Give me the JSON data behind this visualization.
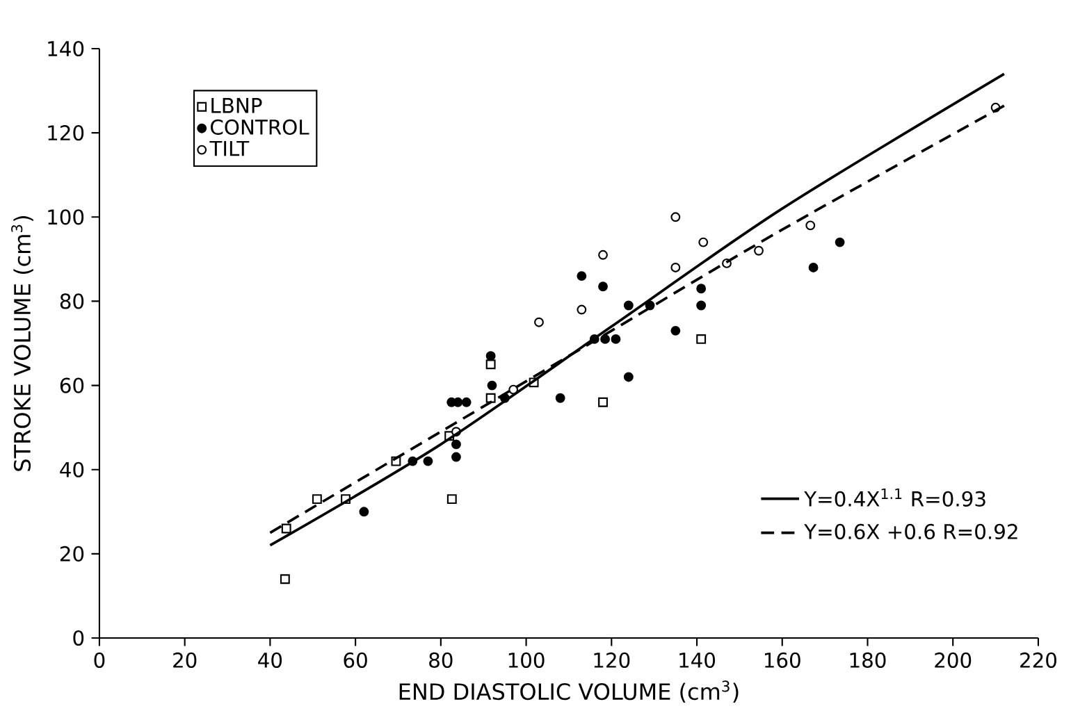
{
  "chart_data": {
    "type": "scatter",
    "xlabel": "END DIASTOLIC VOLUME (cm$^{3}$)",
    "ylabel": "STROKE VOLUME (cm$^{3}$)",
    "xlim": [
      0,
      220
    ],
    "ylim": [
      0,
      140
    ],
    "xticks": [
      0,
      20,
      40,
      60,
      80,
      100,
      120,
      140,
      160,
      180,
      200,
      220
    ],
    "yticks": [
      0,
      20,
      40,
      60,
      80,
      100,
      120,
      140
    ],
    "legend": "top left",
    "grid": false,
    "series": [
      {
        "name": "LBNP",
        "color": "#ffffff",
        "marker": "square",
        "x": [
          43.5,
          43.8,
          51,
          57.7,
          69.5,
          82.6,
          82,
          91.7,
          91.7,
          101.8,
          118,
          141
        ],
        "values": [
          14,
          26,
          33,
          33,
          42,
          33,
          48,
          65,
          57,
          60.7,
          56,
          71
        ]
      },
      {
        "name": "CONTROL",
        "color": "#000000",
        "marker": "circle",
        "x": [
          62,
          73.4,
          77,
          82.5,
          84,
          86,
          83.6,
          83.6,
          91.7,
          92,
          95,
          108,
          113,
          118,
          116,
          118.5,
          121,
          124,
          129,
          124,
          135,
          141,
          141,
          173.5,
          167.3
        ],
        "values": [
          30,
          42,
          42,
          56,
          56,
          56,
          46,
          43,
          67,
          60,
          57,
          57,
          86,
          83.5,
          71,
          71,
          71,
          79,
          79,
          62,
          73,
          83,
          79,
          94,
          88
        ]
      },
      {
        "name": "TILT",
        "color": "#ffffff",
        "marker": "circle",
        "x": [
          83.6,
          97,
          103,
          113,
          118,
          135,
          141.5,
          135,
          147,
          154.5,
          166.6,
          210
        ],
        "values": [
          49,
          59,
          75,
          78,
          91,
          100,
          94,
          88,
          89,
          92,
          98,
          126
        ]
      },
      {
        "name": "Y=0.4X$^{1.1}$    R=0.93",
        "type": "line",
        "color": "#000000",
        "marker": "none",
        "line_style": "solid",
        "x": [
          40,
          80,
          120,
          160,
          212
        ],
        "values": [
          22,
          46,
          74,
          102,
          134
        ]
      },
      {
        "name": "Y=0.6X +0.6   R=0.92",
        "type": "line",
        "color": "#000000",
        "marker": "none",
        "line_style": "dashed",
        "x": [
          40,
          80,
          120,
          160,
          213
        ],
        "values": [
          25,
          49,
          73,
          97,
          127
        ]
      }
    ]
  }
}
